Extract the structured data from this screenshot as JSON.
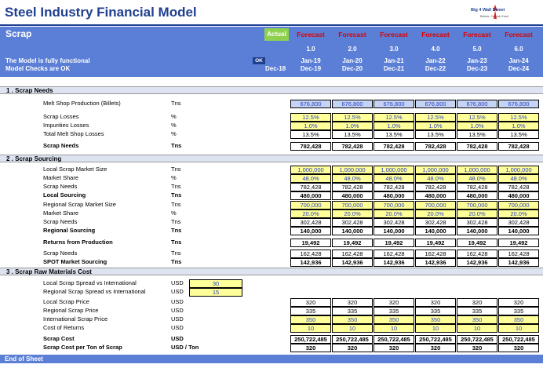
{
  "header": {
    "title": "Steel Industry Financial Model",
    "logo_text": "Big 4 Wall Street",
    "logo_tag": "Believe. Commit. Excel"
  },
  "sheet": {
    "name": "Scrap",
    "functional": "The Model is fully functional",
    "checks": "Model Checks are OK",
    "ok": "OK",
    "actual_label": "Actual",
    "actual_date": "Dec-18",
    "forecast_label": "Forecast",
    "periods": [
      {
        "n": "1.0",
        "jan": "Jan-19",
        "dec": "Dec-19"
      },
      {
        "n": "2.0",
        "jan": "Jan-20",
        "dec": "Dec-20"
      },
      {
        "n": "3.0",
        "jan": "Jan-21",
        "dec": "Dec-21"
      },
      {
        "n": "4.0",
        "jan": "Jan-22",
        "dec": "Dec-22"
      },
      {
        "n": "5.0",
        "jan": "Jan-23",
        "dec": "Dec-23"
      },
      {
        "n": "6.0",
        "jan": "Jan-24",
        "dec": "Dec-24"
      }
    ]
  },
  "sections": {
    "s1": "1 .  Scrap Needs",
    "s2": "2 .  Scrap Sourcing",
    "s3": "3 .  Scrap Raw Materials Cost"
  },
  "spreads": [
    {
      "label": "Local Scrap Spread vs International",
      "unit": "USD",
      "value": "30"
    },
    {
      "label": "Regional Scrap Spread vs International",
      "unit": "USD",
      "value": "15"
    }
  ],
  "rows": [
    {
      "label": "Melt Shop Production (Billets)",
      "unit": "Tns",
      "vals": [
        "676,800",
        "676,800",
        "676,800",
        "676,800",
        "676,800",
        "676,800"
      ],
      "style": "bl",
      "bold": false
    },
    {
      "label": "Scrap Losses",
      "unit": "%",
      "vals": [
        "12.5%",
        "12.5%",
        "12.5%",
        "12.5%",
        "12.5%",
        "12.5%"
      ],
      "style": "y",
      "bold": false
    },
    {
      "label": "Impurities Losses",
      "unit": "%",
      "vals": [
        "1.0%",
        "1.0%",
        "1.0%",
        "1.0%",
        "1.0%",
        "1.0%"
      ],
      "style": "y",
      "bold": false
    },
    {
      "label": "Total Melt Shop Losses",
      "unit": "%",
      "vals": [
        "13.5%",
        "13.5%",
        "13.5%",
        "13.5%",
        "13.5%",
        "13.5%"
      ],
      "style": "w",
      "bold": false
    },
    {
      "label": "Scrap Needs",
      "unit": "Tns",
      "vals": [
        "782,428",
        "782,428",
        "782,428",
        "782,428",
        "782,428",
        "782,428"
      ],
      "style": "w",
      "bold": true
    },
    {
      "label": "Local Scrap Market Size",
      "unit": "Tns",
      "vals": [
        "1,000,000",
        "1,000,000",
        "1,000,000",
        "1,000,000",
        "1,000,000",
        "1,000,000"
      ],
      "style": "y",
      "bold": false
    },
    {
      "label": "Market Share",
      "unit": "%",
      "vals": [
        "48.0%",
        "48.0%",
        "48.0%",
        "48.0%",
        "48.0%",
        "48.0%"
      ],
      "style": "y",
      "bold": false
    },
    {
      "label": "Scrap Needs",
      "unit": "Tns",
      "vals": [
        "782,428",
        "782,428",
        "782,428",
        "782,428",
        "782,428",
        "782,428"
      ],
      "style": "w",
      "bold": false
    },
    {
      "label": "Local Sourcing",
      "unit": "Tns",
      "vals": [
        "480,000",
        "480,000",
        "480,000",
        "480,000",
        "480,000",
        "480,000"
      ],
      "style": "w",
      "bold": true
    },
    {
      "label": "Regional Scrap Market Size",
      "unit": "Tns",
      "vals": [
        "700,000",
        "700,000",
        "700,000",
        "700,000",
        "700,000",
        "700,000"
      ],
      "style": "y",
      "bold": false
    },
    {
      "label": "Market Share",
      "unit": "%",
      "vals": [
        "20.0%",
        "20.0%",
        "20.0%",
        "20.0%",
        "20.0%",
        "20.0%"
      ],
      "style": "y",
      "bold": false
    },
    {
      "label": "Scrap Needs",
      "unit": "Tns",
      "vals": [
        "302,428",
        "302,428",
        "302,428",
        "302,428",
        "302,428",
        "302,428"
      ],
      "style": "w",
      "bold": false
    },
    {
      "label": "Regional Sourcing",
      "unit": "Tns",
      "vals": [
        "140,000",
        "140,000",
        "140,000",
        "140,000",
        "140,000",
        "140,000"
      ],
      "style": "w",
      "bold": true
    },
    {
      "label": "Returns from Production",
      "unit": "Tns",
      "vals": [
        "19,492",
        "19,492",
        "19,492",
        "19,492",
        "19,492",
        "19,492"
      ],
      "style": "w",
      "bold": true
    },
    {
      "label": "Scrap Needs",
      "unit": "Tns",
      "vals": [
        "162,428",
        "162,428",
        "162,428",
        "162,428",
        "162,428",
        "162,428"
      ],
      "style": "w",
      "bold": false
    },
    {
      "label": "SPOT Market Sourcing",
      "unit": "Tns",
      "vals": [
        "142,936",
        "142,936",
        "142,936",
        "142,936",
        "142,936",
        "142,936"
      ],
      "style": "w",
      "bold": true
    },
    {
      "label": "Local Scrap Price",
      "unit": "USD",
      "vals": [
        "320",
        "320",
        "320",
        "320",
        "320",
        "320"
      ],
      "style": "w",
      "bold": false
    },
    {
      "label": "Regional Scrap Price",
      "unit": "USD",
      "vals": [
        "335",
        "335",
        "335",
        "335",
        "335",
        "335"
      ],
      "style": "w",
      "bold": false
    },
    {
      "label": "International Scrap Price",
      "unit": "USD",
      "vals": [
        "350",
        "350",
        "350",
        "350",
        "350",
        "350"
      ],
      "style": "y",
      "bold": false
    },
    {
      "label": "Cost of Returns",
      "unit": "USD",
      "vals": [
        "10",
        "10",
        "10",
        "10",
        "10",
        "10"
      ],
      "style": "y",
      "bold": false
    },
    {
      "label": "Scrap Cost",
      "unit": "USD",
      "vals": [
        "250,722,485",
        "250,722,485",
        "250,722,485",
        "250,722,485",
        "250,722,485",
        "250,722,485"
      ],
      "style": "w",
      "bold": true
    },
    {
      "label": "Scrap Cost per Ton of Scrap",
      "unit": "USD / Ton",
      "vals": [
        "320",
        "320",
        "320",
        "320",
        "320",
        "320"
      ],
      "style": "w",
      "bold": true
    }
  ],
  "footer": {
    "end": "End of Sheet"
  }
}
